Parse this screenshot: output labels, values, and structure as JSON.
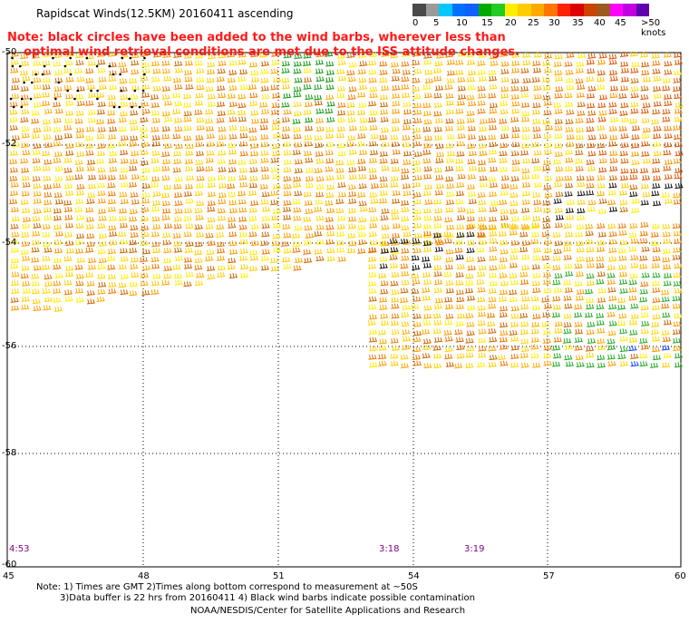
{
  "title": "Rapidscat Winds(12.5KM) 20160411 ascending",
  "note": "Note: black circles have been added to the wind barbs, wherever less than\n    optimal wind retrieval conditions are met due to the ISS attitude changes.",
  "legend": {
    "labels": [
      "0",
      "5",
      "10",
      "15",
      "20",
      "25",
      "30",
      "35",
      "40",
      "45",
      ">50 knots"
    ],
    "colors": [
      "#4a4a4a",
      "#9a9a9a",
      "#00c8ff",
      "#0070ff",
      "#1060ff",
      "#00aa00",
      "#22cc22",
      "#ffee00",
      "#ffcc00",
      "#ffaa00",
      "#ff7700",
      "#ff2200",
      "#dd0000",
      "#cc4400",
      "#9c5a20",
      "#ff00ff",
      "#c000e0",
      "#6000b0"
    ]
  },
  "lat_labels": [
    "-50",
    "-52",
    "-54",
    "-56",
    "-58",
    "-60"
  ],
  "lon_labels": [
    "45",
    "48",
    "51",
    "54",
    "57",
    "60"
  ],
  "pass_times": [
    "4:53",
    "3:18",
    "3:19"
  ],
  "footer": {
    "line1": "Note: 1) Times are GMT 2)Times along bottom correspond to measurement at ~50S",
    "line2": "3)Data buffer is 22 hrs from 20160411 4) Black wind barbs indicate possible contamination",
    "credit": "NOAA/NESDIS/Center for Satellite Applications and Research"
  }
}
